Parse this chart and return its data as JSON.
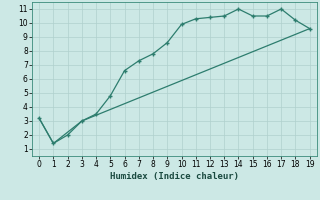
{
  "xlabel": "Humidex (Indice chaleur)",
  "bg_color": "#cce8e5",
  "line_color": "#2d7d6e",
  "grid_color": "#b0d0cd",
  "xlim": [
    -0.5,
    19.5
  ],
  "ylim": [
    0.5,
    11.5
  ],
  "xticks": [
    0,
    1,
    2,
    3,
    4,
    5,
    6,
    7,
    8,
    9,
    10,
    11,
    12,
    13,
    14,
    15,
    16,
    17,
    18,
    19
  ],
  "yticks": [
    1,
    2,
    3,
    4,
    5,
    6,
    7,
    8,
    9,
    10,
    11
  ],
  "line1_x": [
    0,
    1,
    2,
    3,
    4,
    5,
    6,
    7,
    8,
    9,
    10,
    11,
    12,
    13,
    14,
    15,
    16,
    17,
    18,
    19
  ],
  "line1_y": [
    3.2,
    1.4,
    2.0,
    3.0,
    3.5,
    4.8,
    6.6,
    7.3,
    7.8,
    8.6,
    9.9,
    10.3,
    10.4,
    10.5,
    11.0,
    10.5,
    10.5,
    11.0,
    10.2,
    9.6
  ],
  "line2_x": [
    0,
    1,
    3,
    19
  ],
  "line2_y": [
    3.2,
    1.4,
    3.0,
    9.6
  ]
}
